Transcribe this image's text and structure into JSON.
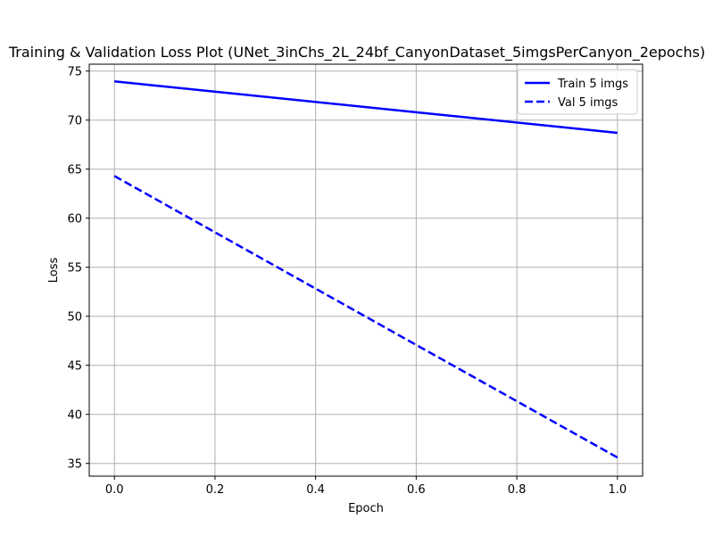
{
  "chart_data": {
    "type": "line",
    "title": "Training & Validation Loss Plot (UNet_3inChs_2L_24bf_CanyonDataset_5imgsPerCanyon_2epochs)",
    "xlabel": "Epoch",
    "ylabel": "Loss",
    "xlim": [
      -0.05,
      1.05
    ],
    "ylim": [
      33.7,
      75.7
    ],
    "xticks": [
      0.0,
      0.2,
      0.4,
      0.6,
      0.8,
      1.0
    ],
    "xtick_labels": [
      "0.0",
      "0.2",
      "0.4",
      "0.6",
      "0.8",
      "1.0"
    ],
    "yticks": [
      35,
      40,
      45,
      50,
      55,
      60,
      65,
      70,
      75
    ],
    "ytick_labels": [
      "35",
      "40",
      "45",
      "50",
      "55",
      "60",
      "65",
      "70",
      "75"
    ],
    "grid": true,
    "legend_position": "top-right",
    "x": [
      0,
      1
    ],
    "series": [
      {
        "name": "Train 5 imgs",
        "values": [
          73.95,
          68.7
        ],
        "color": "#0000ff",
        "style": "solid"
      },
      {
        "name": "Val 5 imgs",
        "values": [
          64.3,
          35.6
        ],
        "color": "#0000ff",
        "style": "dashed"
      }
    ]
  }
}
